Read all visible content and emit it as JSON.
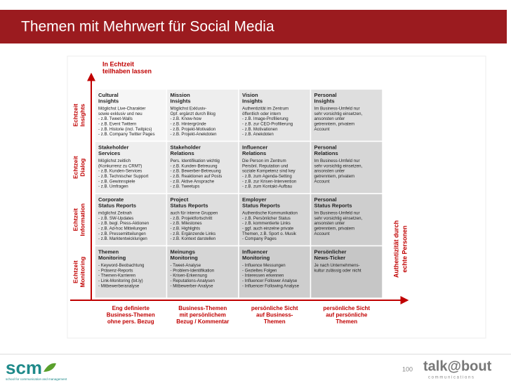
{
  "header": {
    "title": "Themen mit Mehrwert für Social Media"
  },
  "y_axis": {
    "label": [
      "In Echtzeit",
      "teilhaben lassen"
    ]
  },
  "x_axis": {
    "label": [
      "Authentizität durch",
      "echte Personen"
    ]
  },
  "columns": [
    [
      "Eng definierte",
      "Business-Themen",
      "ohne pers. Bezug"
    ],
    [
      "Business-Themen",
      "mit persönlichem",
      "Bezug / Kommentar"
    ],
    [
      "persönliche Sicht",
      "auf Business-",
      "Themen"
    ],
    [
      "persönliche Sicht",
      "auf persönliche",
      "Themen"
    ]
  ],
  "rows": [
    {
      "label": [
        "Echtzeit",
        "Insights"
      ],
      "cells": [
        {
          "title": [
            "Cultural",
            "Insights"
          ],
          "lines": [
            "Möglichst Live-Charakter",
            "sowie exklusiv und neu",
            "- z.B. Tweet-Walls",
            "- z.B. Event Twittern",
            "- z.B. Historie (incl. Twitpics)",
            "- z.B. Company Twitter Pages"
          ]
        },
        {
          "title": [
            "Mission",
            "Insights"
          ],
          "lines": [
            "Möglichst Exklusiv-",
            "Opf. ergänzt durch Blog",
            "- z.B. Know-how",
            "- z.B. Hintergründe",
            "- z.B. Projekt-Motivation",
            "- z.B. Projekt-Anekdoten"
          ]
        },
        {
          "title": [
            "Vision",
            "Insights"
          ],
          "lines": [
            "Authentizität im Zentrum",
            "öffentlich oder intern",
            "- z.B. Image-Profilierung",
            "- z.B. zur CEO-Profilierung",
            "- z.B. Motivationen",
            "- z.B. Anekdoten"
          ]
        },
        {
          "title": [
            "Personal",
            "Insights"
          ],
          "lines": [
            "Im Business-Umfeld nur",
            "sehr vorsichtig einsetzen,",
            "ansonsten unter",
            "getrenntem, privatem",
            "Account"
          ]
        }
      ]
    },
    {
      "label": [
        "Echtzeit",
        "Dialog"
      ],
      "cells": [
        {
          "title": [
            "Stakeholder",
            "Services"
          ],
          "lines": [
            "Möglichst zeitlich",
            "(Konkurrenz zu CRM?)",
            "- z.B. Kunden-Services",
            "- z.B. Technischer Support",
            "- z.B. Gewinnspiele",
            "- z.B. Umfragen"
          ]
        },
        {
          "title": [
            "Stakeholder",
            "Relations"
          ],
          "lines": [
            "Pers. Identifikation wichtig",
            "- z.B. Kunden-Betreuung",
            "- z.B. Bewerber-Betreuung",
            "- z.B. Reaktionen auf Posts",
            "- z.B. Aktive Ansprache",
            "- z.B. Tweetups"
          ]
        },
        {
          "title": [
            "Influencer",
            "Relations"
          ],
          "lines": [
            "Die Person im Zentrum",
            "Persönl. Reputation und",
            "soziale Kompetenz sind key",
            "- z.B. zum Agenda-Setting",
            "- z.B. zur Krisen-Intervention",
            "- z.B. zum Kontakt-Aufbau"
          ]
        },
        {
          "title": [
            "Personal",
            "Relations"
          ],
          "lines": [
            "Im Business-Umfeld nur",
            "sehr vorsichtig einsetzen,",
            "ansonsten unter",
            "getrenntem, privatem",
            "Account"
          ]
        }
      ]
    },
    {
      "label": [
        "Echtzeit",
        "Information"
      ],
      "cells": [
        {
          "title": [
            "Corporate",
            "Status Reports"
          ],
          "lines": [
            "möglichst Zeitnah",
            "- z.B. SW-Updates",
            "- z.B. begl. Press-Aktionen",
            "- z.B. Ad-hoc Mitteilungen",
            "- z.B. Pressemitteilungen",
            "- z.B. Marktentwicklungen"
          ]
        },
        {
          "title": [
            "Project",
            "Status Reports"
          ],
          "lines": [
            "auch für interne Gruppen",
            "- z.B. Projektfortschritt",
            "- z.B. Milestones",
            "- z.B. Highlights",
            "- z.B. Ergänzende Links",
            "- z.B. Kontext darstellen"
          ]
        },
        {
          "title": [
            "Employer",
            "Status Reports"
          ],
          "lines": [
            "Authentische Kommunikation",
            "- z.B. Persönlicher Status",
            "- z.B. kommentierte Links",
            "- ggf. auch einzelne private",
            "Themen, z.B. Sport o. Musik",
            "- Company Pages"
          ]
        },
        {
          "title": [
            "Personal",
            "Status Reports"
          ],
          "lines": [
            "Im Business-Umfeld nur",
            "sehr vorsichtig einsetzen,",
            "ansonsten unter",
            "getrenntem, privatem",
            "Account"
          ]
        }
      ]
    },
    {
      "label": [
        "Echtzeit",
        "Monitoring"
      ],
      "cells": [
        {
          "title": [
            "Themen",
            "Monitoring"
          ],
          "lines": [
            "- Keyword-Beobachtung",
            "- Präsenz-Reports",
            "- Themen-Karrieren",
            "- Link-Monitoring (bit.ly)",
            "- Mitbewerberanalyse"
          ]
        },
        {
          "title": [
            "Meinungs",
            "Monitoring"
          ],
          "lines": [
            "- Tweet-Analyse",
            "- Problem-Identifikation",
            "- Krisen-Erkennung",
            "- Reputations-Analysen",
            "- Mitbewerber-Analyse"
          ]
        },
        {
          "title": [
            "Influencer",
            "Monitoring"
          ],
          "lines": [
            "- Influence Messungen",
            "- Gezieltes Folgen",
            "- Interessen erkennen",
            "- Influencer Follower Analyse",
            "- Influencer Following Analyse"
          ]
        },
        {
          "title": [
            "Persönlicher",
            "News-Ticker"
          ],
          "lines": [
            "Je nach Unternehmens-",
            "kultur zulässig oder nicht"
          ]
        }
      ]
    }
  ],
  "footer": {
    "page": "100",
    "logo_left": "scm",
    "logo_left_sub": "school for communication and management",
    "logo_right": "talk@bout",
    "logo_right_sub": "c o m m u n i c a t i o n s"
  }
}
